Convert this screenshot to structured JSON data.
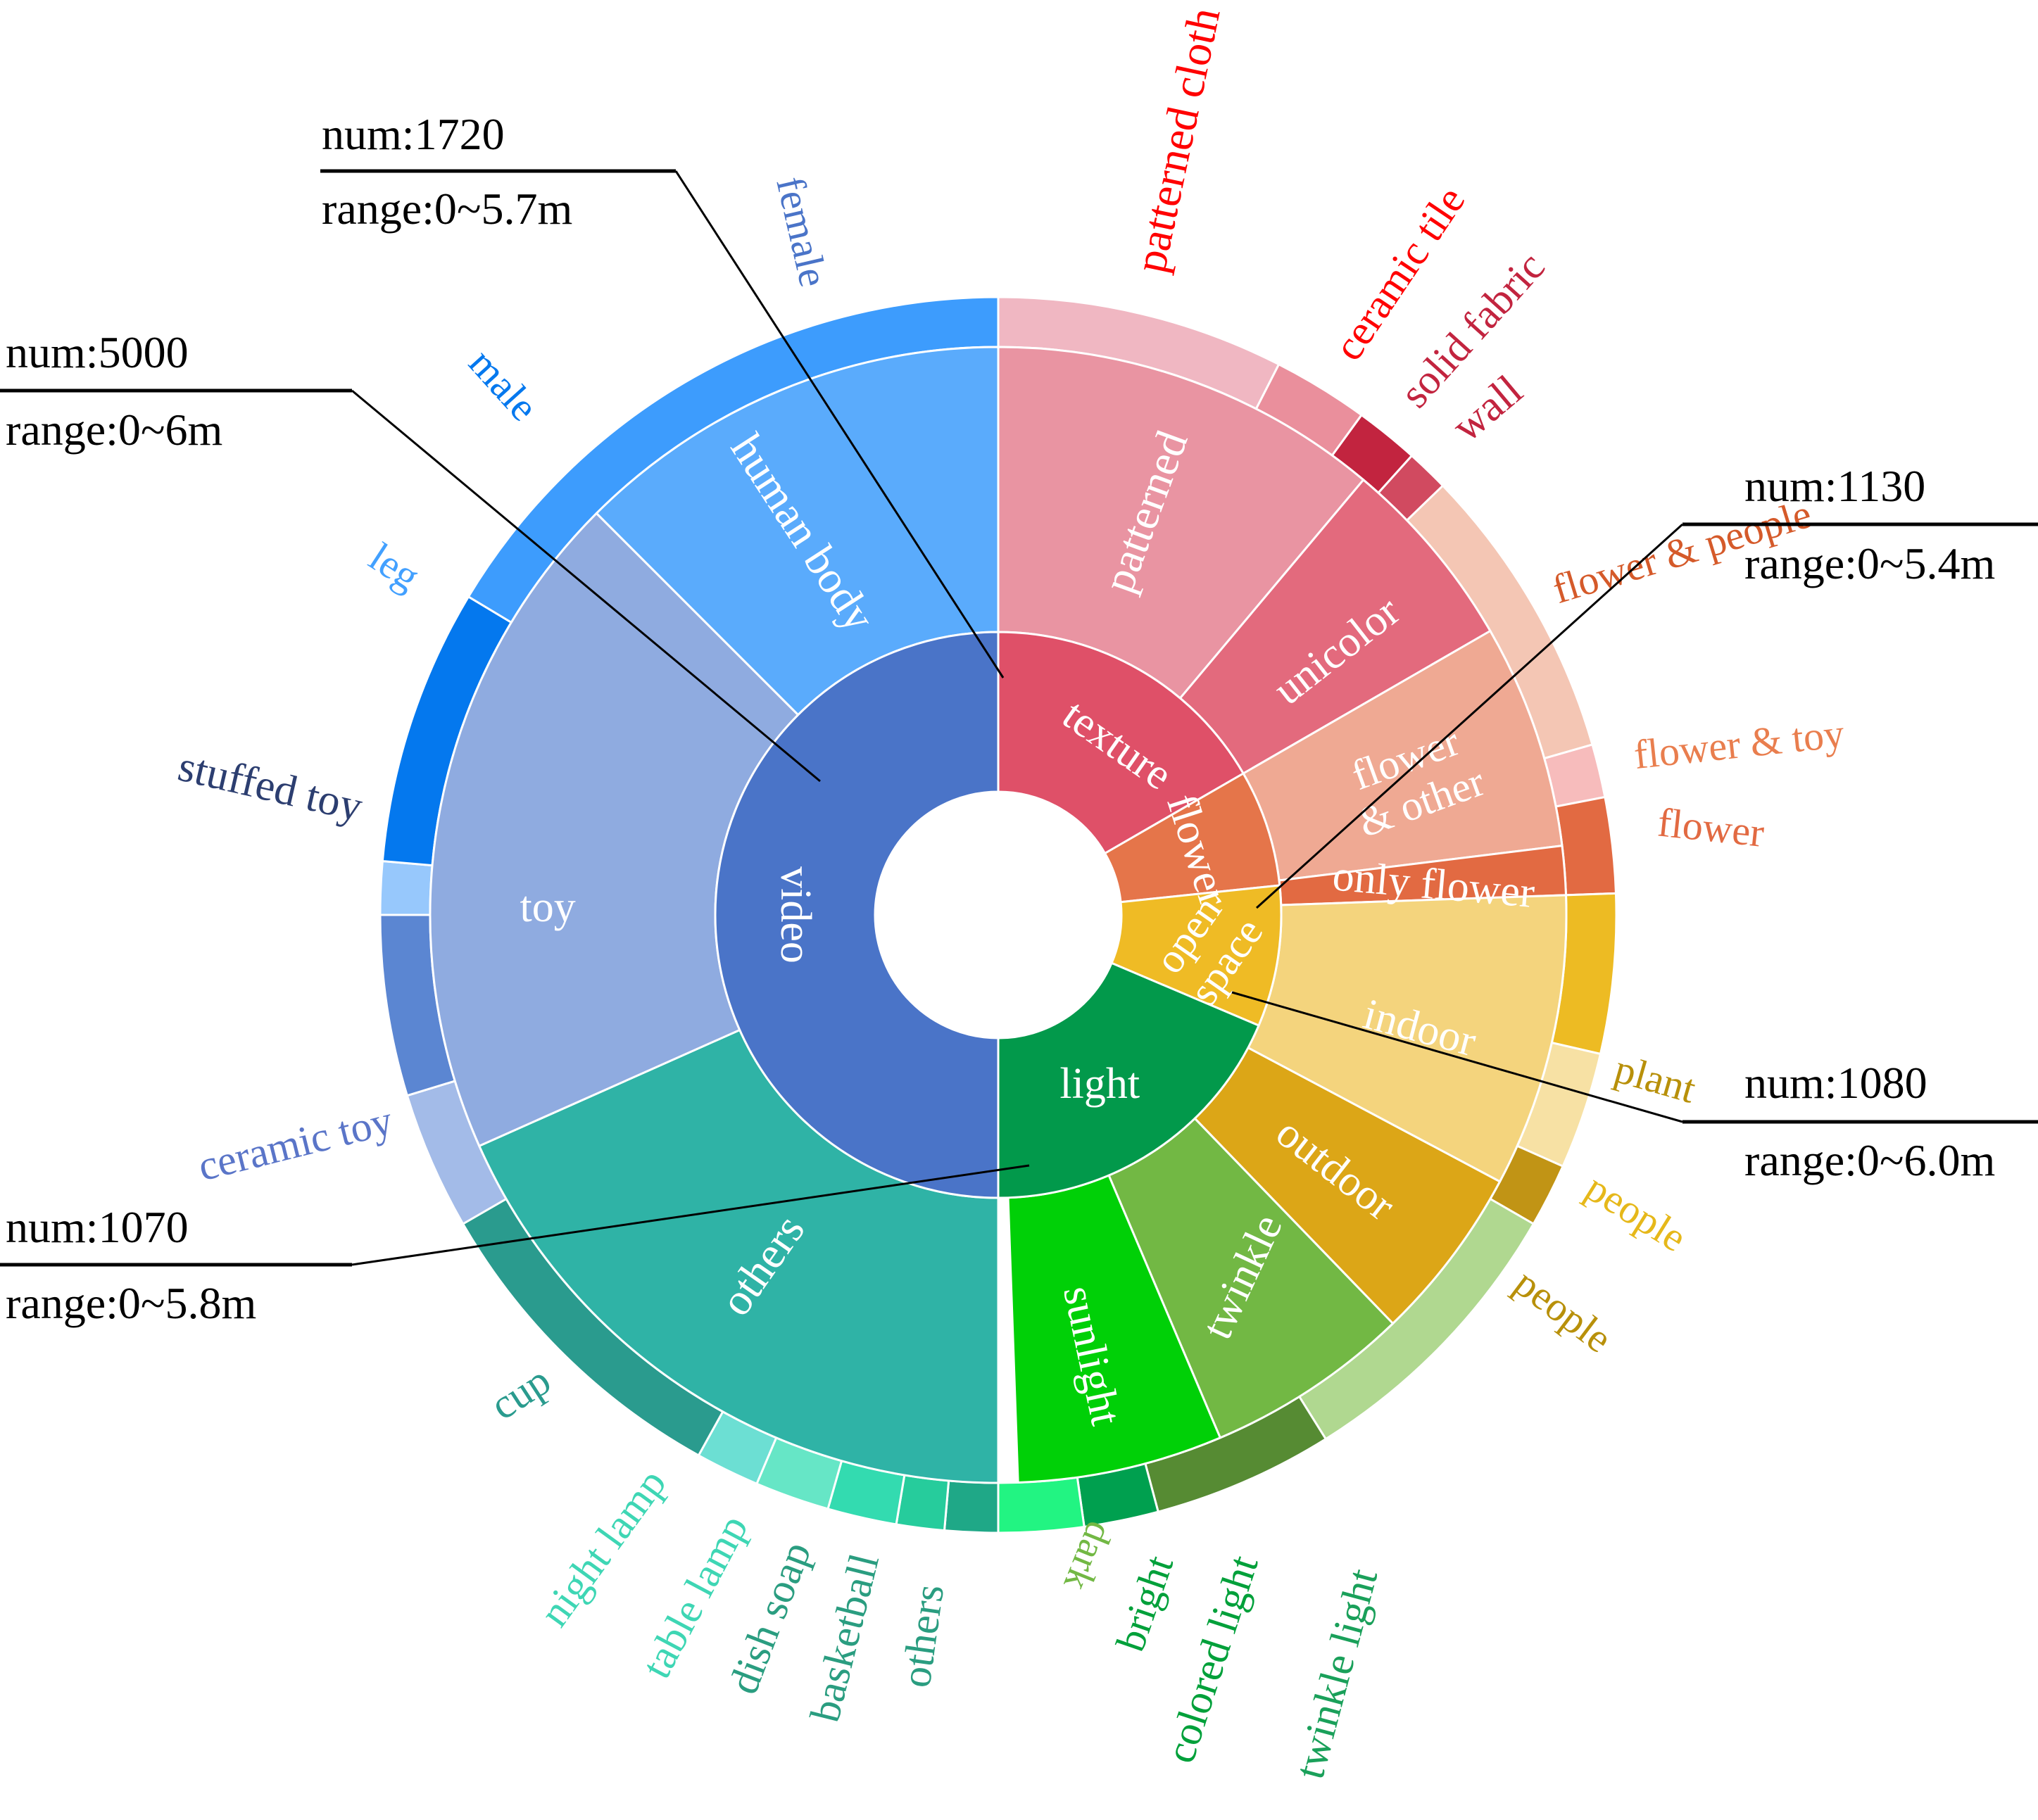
{
  "chart_data": {
    "type": "sunburst",
    "rings": [
      "category",
      "subcategory",
      "subject"
    ],
    "categories": [
      {
        "name": "texture",
        "color": "#df5068",
        "children": [
          {
            "name": "patterned",
            "color": "#e994a2",
            "children": [
              {
                "name": "patterned cloth",
                "color": "#f0b7c2",
                "label_color": "#ff0000"
              },
              {
                "name": "ceramic tile",
                "color": "#ea8f9c",
                "label_color": "#ff0000"
              }
            ]
          },
          {
            "name": "unicolor",
            "color": "#e36a7d",
            "children": [
              {
                "name": "solid fabric",
                "color": "#c2243f",
                "label_color": "#c2243f"
              },
              {
                "name": "wall",
                "color": "#d14a60",
                "label_color": "#c2243f"
              }
            ]
          }
        ]
      },
      {
        "name": "flower",
        "color": "#e5754a",
        "children": [
          {
            "name": "flower & other",
            "color": "#efa993",
            "children": [
              {
                "name": "flower & people",
                "color": "#f4c6b4",
                "label_color": "#d55a2a"
              },
              {
                "name": "flower & toy",
                "color": "#f7bcbc",
                "label_color": "#e97e4e"
              }
            ]
          },
          {
            "name": "only flower",
            "color": "#e26a42",
            "children": [
              {
                "name": "flower",
                "color": "#e26a42",
                "label_color": "#e26a42"
              }
            ]
          }
        ]
      },
      {
        "name": "open space",
        "color": "#efbb25",
        "children": [
          {
            "name": "indoor",
            "color": "#f4d47d",
            "children": [
              {
                "name": "plant",
                "color": "#edbb23",
                "label_color": "#b8900a"
              },
              {
                "name": "people",
                "color": "#f7e1a4",
                "label_color": "#e6b81a"
              }
            ]
          },
          {
            "name": "outdoor",
            "color": "#dca617",
            "children": [
              {
                "name": "people",
                "color": "#c19415",
                "label_color": "#b8900a"
              }
            ]
          }
        ]
      },
      {
        "name": "light",
        "color": "#02994b",
        "children": [
          {
            "name": "twinkle",
            "color": "#72b844",
            "children": [
              {
                "name": "twinkle light",
                "color": "#b0d890",
                "label_color": "#1aa05a"
              },
              {
                "name": "colored light",
                "color": "#568b33",
                "label_color": "#00a03a"
              }
            ]
          },
          {
            "name": "sunlight",
            "color": "#00d007",
            "children": [
              {
                "name": "bright",
                "color": "#00a04f",
                "label_color": "#00a03a"
              },
              {
                "name": "dark",
                "color": "#22f482",
                "label_color": "#72b844"
              }
            ]
          }
        ]
      },
      {
        "name": "video",
        "color": "#4a74c8",
        "children": [
          {
            "name": "others",
            "color": "#2fb3a6",
            "children": [
              {
                "name": "others",
                "color": "#1fa887",
                "label_color": "#2a9d80"
              },
              {
                "name": "basketball",
                "color": "#26cc9c",
                "label_color": "#2a9d80"
              },
              {
                "name": "dish soap",
                "color": "#33dbb0",
                "label_color": "#2a9d80"
              },
              {
                "name": "table lamp",
                "color": "#66e6c6",
                "label_color": "#3ed6b4"
              },
              {
                "name": "night lamp",
                "color": "#6cdfd3",
                "label_color": "#3ed6b4"
              },
              {
                "name": "cup",
                "color": "#2a9b8e",
                "label_color": "#2a9b8e"
              }
            ]
          },
          {
            "name": "toy",
            "color": "#8fabe0",
            "children": [
              {
                "name": "ceramic toy",
                "color": "#a3bbe8",
                "label_color": "#5a75c8"
              },
              {
                "name": "stuffed toy",
                "color": "#5b86d2",
                "label_color": "#2c3e70"
              }
            ]
          },
          {
            "name": "human body",
            "color": "#5aabfc",
            "children": [
              {
                "name": "leg",
                "color": "#97c8fc",
                "label_color": "#42a0ff"
              },
              {
                "name": "male",
                "color": "#0478ee",
                "label_color": "#0478ee"
              },
              {
                "name": "female",
                "color": "#3d9cfd",
                "label_color": "#4a74c8"
              }
            ]
          }
        ]
      }
    ],
    "annotations": [
      {
        "target": "texture",
        "num": "num:1720",
        "range": "range:0~5.7m"
      },
      {
        "target": "video",
        "num": "num:5000",
        "range": "range:0~6m"
      },
      {
        "target": "flower",
        "num": "num:1130",
        "range": "range:0~5.4m"
      },
      {
        "target": "open space",
        "num": "num:1080",
        "range": "range:0~6.0m"
      },
      {
        "target": "light",
        "num": "num:1070",
        "range": "range:0~5.8m"
      }
    ]
  }
}
